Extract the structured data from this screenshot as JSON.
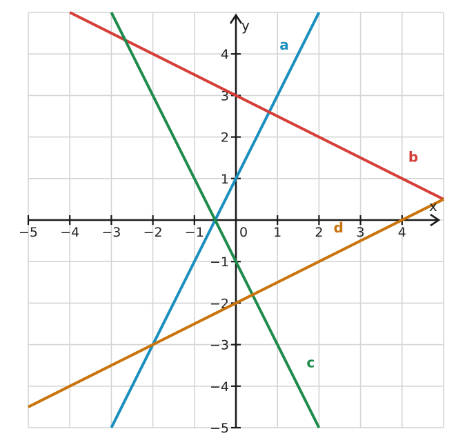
{
  "chart_data": {
    "type": "line",
    "xlabel": "x",
    "ylabel": "y",
    "xlim": [
      -5,
      5
    ],
    "ylim": [
      -5,
      5
    ],
    "grid": true,
    "x_ticks": [
      {
        "v": -5,
        "label": "−5"
      },
      {
        "v": -4,
        "label": "−4"
      },
      {
        "v": -3,
        "label": "−3"
      },
      {
        "v": -2,
        "label": "−2"
      },
      {
        "v": -1,
        "label": "−1"
      },
      {
        "v": 0,
        "label": "0"
      },
      {
        "v": 1,
        "label": "1"
      },
      {
        "v": 2,
        "label": "2"
      },
      {
        "v": 3,
        "label": "3"
      },
      {
        "v": 4,
        "label": "4"
      }
    ],
    "y_ticks": [
      {
        "v": 4,
        "label": "4"
      },
      {
        "v": 3,
        "label": "3"
      },
      {
        "v": 2,
        "label": "2"
      },
      {
        "v": 1,
        "label": "1"
      },
      {
        "v": -1,
        "label": "−1"
      },
      {
        "v": -2,
        "label": "−2"
      },
      {
        "v": -3,
        "label": "−3"
      },
      {
        "v": -4,
        "label": "−4"
      },
      {
        "v": -5,
        "label": "−5"
      }
    ],
    "series": [
      {
        "name": "a",
        "color": "#1a8fbf",
        "slope": 2,
        "intercept": 1,
        "label_at": [
          1.05,
          4.1
        ]
      },
      {
        "name": "b",
        "color": "#d43f3a",
        "slope": -0.5,
        "intercept": 3,
        "label_at": [
          4.15,
          1.4
        ]
      },
      {
        "name": "c",
        "color": "#1e8a4c",
        "slope": -2,
        "intercept": -1,
        "label_at": [
          1.7,
          -3.55
        ]
      },
      {
        "name": "d",
        "color": "#c8740a",
        "slope": 0.5,
        "intercept": -2,
        "label_at": [
          2.35,
          -0.3
        ]
      }
    ]
  }
}
